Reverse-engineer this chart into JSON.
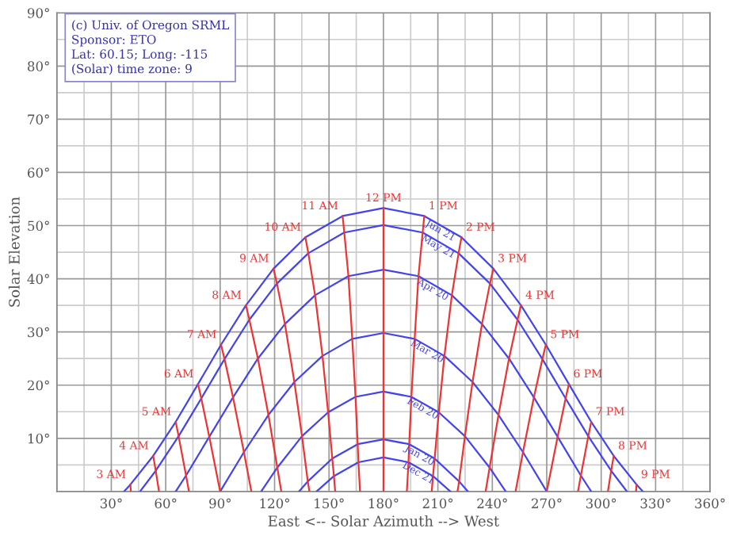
{
  "chart_data": {
    "type": "line",
    "xlabel": "East <-- Solar Azimuth --> West",
    "ylabel": "Solar Elevation",
    "xlim": [
      0,
      360
    ],
    "ylim": [
      0,
      90
    ],
    "xticks": [
      {
        "value": 0,
        "label": null
      },
      {
        "value": 30,
        "label": "30°"
      },
      {
        "value": 60,
        "label": "60°"
      },
      {
        "value": 90,
        "label": "90°"
      },
      {
        "value": 120,
        "label": "120°"
      },
      {
        "value": 150,
        "label": "150°"
      },
      {
        "value": 180,
        "label": "180°"
      },
      {
        "value": 210,
        "label": "210°"
      },
      {
        "value": 240,
        "label": "240°"
      },
      {
        "value": 270,
        "label": "270°"
      },
      {
        "value": 300,
        "label": "300°"
      },
      {
        "value": 330,
        "label": "330°"
      },
      {
        "value": 360,
        "label": "360°"
      }
    ],
    "yticks": [
      {
        "value": 0,
        "label": null
      },
      {
        "value": 10,
        "label": "10°"
      },
      {
        "value": 20,
        "label": "20°"
      },
      {
        "value": 30,
        "label": "30°"
      },
      {
        "value": 40,
        "label": "40°"
      },
      {
        "value": 50,
        "label": "50°"
      },
      {
        "value": 60,
        "label": "60°"
      },
      {
        "value": 70,
        "label": "70°"
      },
      {
        "value": 80,
        "label": "80°"
      },
      {
        "value": 90,
        "label": "90°"
      }
    ],
    "grid": true,
    "legend": false,
    "marker": "none",
    "line_style": "solid",
    "annotations": [
      "(c) Univ. of Oregon SRML",
      "Sponsor: ETO",
      "Lat: 60.15; Long: -115",
      "(Solar) time zone: 9"
    ],
    "series": [
      {
        "name": "Jun 21",
        "color": "#4444ee",
        "x": [
          37.0,
          40.5,
          53.1,
          65.5,
          77.8,
          90.5,
          104.2,
          119.4,
          137.0,
          157.5,
          180,
          202.5,
          223.0,
          240.6,
          255.8,
          269.5,
          282.2,
          294.5,
          306.9,
          319.5,
          323.0
        ],
        "values": [
          0,
          1.3,
          6.7,
          13.1,
          20.2,
          27.6,
          35.0,
          41.9,
          47.8,
          51.8,
          53.3,
          51.8,
          47.8,
          41.9,
          35.0,
          27.6,
          20.2,
          13.1,
          6.7,
          1.3,
          0
        ]
      },
      {
        "name": "May 21",
        "color": "#4444ee",
        "x": [
          45.8,
          54.5,
          67.1,
          79.6,
          92.4,
          106.1,
          121.3,
          138.6,
          158.4,
          180,
          201.6,
          221.4,
          238.7,
          253.9,
          267.6,
          280.4,
          292.9,
          305.5,
          314.2
        ],
        "values": [
          0,
          3.9,
          10.4,
          17.5,
          24.9,
          32.3,
          39.1,
          44.8,
          48.7,
          50.1,
          48.7,
          44.8,
          39.1,
          32.3,
          24.9,
          17.5,
          10.4,
          3.9,
          0
        ]
      },
      {
        "name": "Apr 20",
        "color": "#4444ee",
        "x": [
          65.5,
          71.2,
          84.0,
          97.1,
          110.8,
          125.7,
          142.3,
          160.7,
          180,
          199.3,
          217.7,
          234.3,
          249.2,
          262.9,
          276.0,
          288.8,
          294.5
        ],
        "values": [
          0,
          3.0,
          10.3,
          17.7,
          25.0,
          31.5,
          36.9,
          40.5,
          41.7,
          40.5,
          36.9,
          31.5,
          25.0,
          17.7,
          10.3,
          3.0,
          0
        ]
      },
      {
        "name": "Mar 20",
        "color": "#4444ee",
        "x": [
          90,
          103.1,
          116.6,
          130.9,
          146.4,
          162.8,
          180,
          197.2,
          213.6,
          229.1,
          243.4,
          256.9,
          270
        ],
        "values": [
          0,
          7.4,
          14.4,
          20.6,
          25.5,
          28.7,
          29.8,
          28.7,
          25.5,
          20.6,
          14.4,
          7.4,
          0
        ]
      },
      {
        "name": "Feb 20",
        "color": "#4444ee",
        "x": [
          112.6,
          121.5,
          135.1,
          149.5,
          164.6,
          180,
          195.4,
          210.5,
          224.9,
          238.5,
          247.4
        ],
        "values": [
          0,
          4.5,
          10.4,
          14.9,
          17.8,
          18.8,
          17.8,
          14.9,
          10.4,
          4.5,
          0
        ]
      },
      {
        "name": "Jan 20",
        "color": "#4444ee",
        "x": [
          133.4,
          138.3,
          151.8,
          165.8,
          180,
          194.2,
          208.2,
          221.7,
          226.6
        ],
        "values": [
          0,
          1.9,
          6.2,
          8.9,
          9.8,
          8.9,
          6.2,
          1.9,
          0
        ]
      },
      {
        "name": "Dec 21",
        "color": "#4444ee",
        "x": [
          143.1,
          152.7,
          166.2,
          180,
          193.8,
          207.3,
          216.9
        ],
        "values": [
          0,
          2.9,
          5.5,
          6.4,
          5.5,
          2.9,
          0
        ]
      },
      {
        "name": "3 AM",
        "color": "#ee3333",
        "x": [
          40.5,
          40.8
        ],
        "values": [
          1.3,
          0
        ]
      },
      {
        "name": "4 AM",
        "color": "#ee3333",
        "x": [
          53.1,
          54.5,
          56.3
        ],
        "values": [
          6.7,
          3.9,
          0
        ]
      },
      {
        "name": "5 AM",
        "color": "#ee3333",
        "x": [
          65.5,
          67.1,
          71.2,
          72.8
        ],
        "values": [
          13.1,
          10.4,
          3.0,
          0
        ]
      },
      {
        "name": "6 AM",
        "color": "#ee3333",
        "x": [
          77.8,
          79.6,
          84.0,
          90
        ],
        "values": [
          20.2,
          17.5,
          10.3,
          0
        ]
      },
      {
        "name": "7 AM",
        "color": "#ee3333",
        "x": [
          90.5,
          92.4,
          97.1,
          103.1,
          107.2
        ],
        "values": [
          27.6,
          24.9,
          17.7,
          7.4,
          0
        ]
      },
      {
        "name": "8 AM",
        "color": "#ee3333",
        "x": [
          104.2,
          106.1,
          110.8,
          116.6,
          121.5,
          123.7
        ],
        "values": [
          35.0,
          32.3,
          25.0,
          14.4,
          4.5,
          0
        ]
      },
      {
        "name": "9 AM",
        "color": "#ee3333",
        "x": [
          119.4,
          121.3,
          125.7,
          130.9,
          135.1,
          138.3,
          139.2
        ],
        "values": [
          41.9,
          39.1,
          31.5,
          20.6,
          10.4,
          1.9,
          0
        ]
      },
      {
        "name": "10 AM",
        "color": "#ee3333",
        "x": [
          137.0,
          138.6,
          142.3,
          146.4,
          149.5,
          151.8,
          152.7,
          153.4
        ],
        "values": [
          47.8,
          44.8,
          36.9,
          25.5,
          14.9,
          6.2,
          2.9,
          0
        ]
      },
      {
        "name": "11 AM",
        "color": "#ee3333",
        "x": [
          157.5,
          158.4,
          160.7,
          162.8,
          164.6,
          165.8,
          166.2,
          167.1
        ],
        "values": [
          51.8,
          48.7,
          40.5,
          28.7,
          17.8,
          8.9,
          5.5,
          0
        ]
      },
      {
        "name": "12 PM",
        "color": "#ee3333",
        "x": [
          180,
          180,
          180,
          180,
          180,
          180,
          180,
          180
        ],
        "values": [
          53.3,
          50.1,
          41.7,
          29.8,
          18.8,
          9.8,
          6.4,
          0
        ]
      },
      {
        "name": "1 PM",
        "color": "#ee3333",
        "x": [
          202.5,
          201.6,
          199.3,
          197.2,
          195.4,
          194.2,
          193.8,
          192.9
        ],
        "values": [
          51.8,
          48.7,
          40.5,
          28.7,
          17.8,
          8.9,
          5.5,
          0
        ]
      },
      {
        "name": "2 PM",
        "color": "#ee3333",
        "x": [
          223.0,
          221.4,
          217.7,
          213.6,
          210.5,
          208.2,
          207.3,
          206.6
        ],
        "values": [
          47.8,
          44.8,
          36.9,
          25.5,
          14.9,
          6.2,
          2.9,
          0
        ]
      },
      {
        "name": "3 PM",
        "color": "#ee3333",
        "x": [
          240.6,
          238.7,
          234.3,
          229.1,
          224.9,
          221.7,
          220.8
        ],
        "values": [
          41.9,
          39.1,
          31.5,
          20.6,
          10.4,
          1.9,
          0
        ]
      },
      {
        "name": "4 PM",
        "color": "#ee3333",
        "x": [
          255.8,
          253.9,
          249.2,
          243.4,
          238.5,
          236.3
        ],
        "values": [
          35.0,
          32.3,
          25.0,
          14.4,
          4.5,
          0
        ]
      },
      {
        "name": "5 PM",
        "color": "#ee3333",
        "x": [
          269.5,
          267.6,
          262.9,
          256.9,
          252.8
        ],
        "values": [
          27.6,
          24.9,
          17.7,
          7.4,
          0
        ]
      },
      {
        "name": "6 PM",
        "color": "#ee3333",
        "x": [
          282.2,
          280.4,
          276.0,
          270
        ],
        "values": [
          20.2,
          17.5,
          10.3,
          0
        ]
      },
      {
        "name": "7 PM",
        "color": "#ee3333",
        "x": [
          294.5,
          292.9,
          288.8,
          287.2
        ],
        "values": [
          13.1,
          10.4,
          3.0,
          0
        ]
      },
      {
        "name": "8 PM",
        "color": "#ee3333",
        "x": [
          306.9,
          305.5,
          303.7
        ],
        "values": [
          6.7,
          3.9,
          0
        ]
      },
      {
        "name": "9 PM",
        "color": "#ee3333",
        "x": [
          319.5,
          319.2
        ],
        "values": [
          1.3,
          0
        ]
      }
    ]
  }
}
